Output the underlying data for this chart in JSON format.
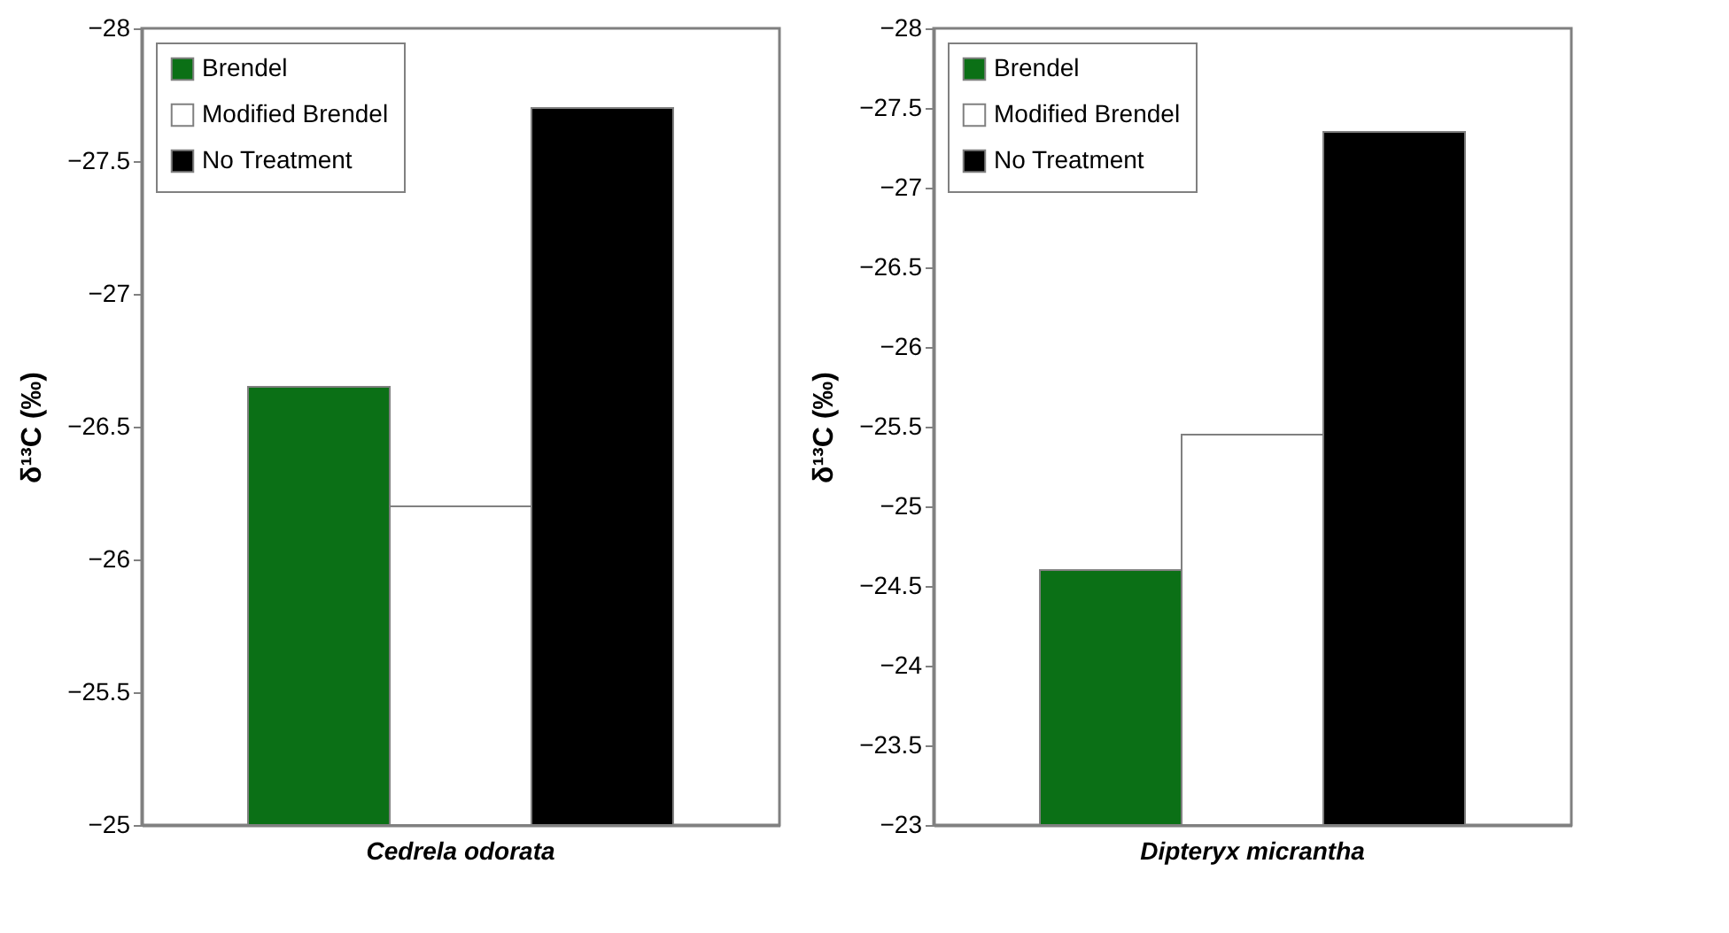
{
  "chart_data": [
    {
      "type": "bar",
      "categories": [
        "Cedrela odorata"
      ],
      "ylabel": "δ¹³C (‰)",
      "ylim": [
        -25,
        -28
      ],
      "yticks": [
        -28,
        -27.5,
        -27,
        -26.5,
        -26,
        -25.5,
        -25
      ],
      "legend": "top left",
      "series": [
        {
          "name": "Brendel",
          "color": "#0b7016",
          "values": [
            -26.65
          ]
        },
        {
          "name": "Modified Brendel",
          "color": "#ffffff",
          "values": [
            -26.2
          ]
        },
        {
          "name": "No Treatment",
          "color": "#000000",
          "values": [
            -27.7
          ]
        }
      ]
    },
    {
      "type": "bar",
      "categories": [
        "Dipteryx micrantha"
      ],
      "ylabel": "δ¹³C (‰)",
      "ylim": [
        -23,
        -28
      ],
      "yticks": [
        -28,
        -27.5,
        -27,
        -26.5,
        -26,
        -25.5,
        -25,
        -24.5,
        -24,
        -23.5,
        -23
      ],
      "legend": "top left",
      "series": [
        {
          "name": "Brendel",
          "color": "#0b7016",
          "values": [
            -24.6
          ]
        },
        {
          "name": "Modified Brendel",
          "color": "#ffffff",
          "values": [
            -25.45
          ]
        },
        {
          "name": "No Treatment",
          "color": "#000000",
          "values": [
            -27.35
          ]
        }
      ]
    }
  ]
}
